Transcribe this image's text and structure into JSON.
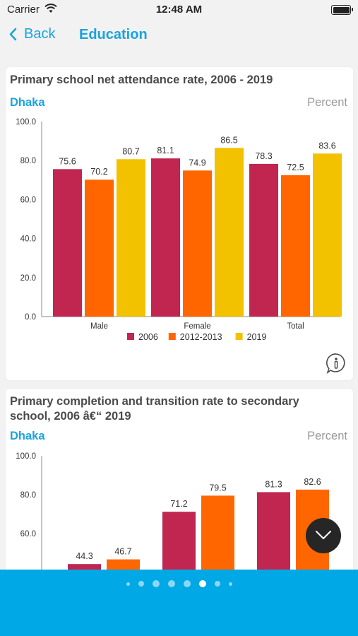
{
  "status": {
    "carrier": "Carrier",
    "time": "12:48 AM"
  },
  "nav": {
    "back_label": "Back",
    "title": "Education"
  },
  "cards": [
    {
      "title": "Primary school net attendance rate, 2006 - 2019",
      "region": "Dhaka",
      "unit": "Percent",
      "chart_data": {
        "type": "bar",
        "categories": [
          "Male",
          "Female",
          "Total"
        ],
        "series": [
          {
            "name": "2006",
            "color": "#c0264f",
            "values": [
              75.6,
              81.1,
              78.3
            ]
          },
          {
            "name": "2012-2013",
            "color": "#ff6600",
            "values": [
              70.2,
              74.9,
              72.5
            ]
          },
          {
            "name": "2019",
            "color": "#f2c200",
            "values": [
              80.7,
              86.5,
              83.6
            ]
          }
        ],
        "ylim": [
          0,
          100
        ],
        "yticks": [
          "0.0",
          "20.0",
          "40.0",
          "60.0",
          "80.0",
          "100.0"
        ],
        "legend": "bottom",
        "grid": false
      }
    },
    {
      "title": "Primary completion and transition rate to secondary school, 2006 â€“ 2019",
      "region": "Dhaka",
      "unit": "Percent",
      "chart_data": {
        "type": "bar",
        "categories": [
          "",
          "",
          ""
        ],
        "series": [
          {
            "color": "#c0264f",
            "values": [
              44.3,
              71.2,
              81.3
            ]
          },
          {
            "color": "#ff6600",
            "values": [
              46.7,
              79.5,
              82.6
            ]
          }
        ],
        "ylim": [
          0,
          100
        ],
        "yticks": [
          "60.0",
          "80.0",
          "100.0"
        ],
        "grid": false
      }
    }
  ],
  "pager": {
    "count": 8,
    "active": 5
  },
  "icons": {
    "back": "chevron-left-icon",
    "info": "info-icon",
    "scroll": "chevron-down-icon"
  }
}
